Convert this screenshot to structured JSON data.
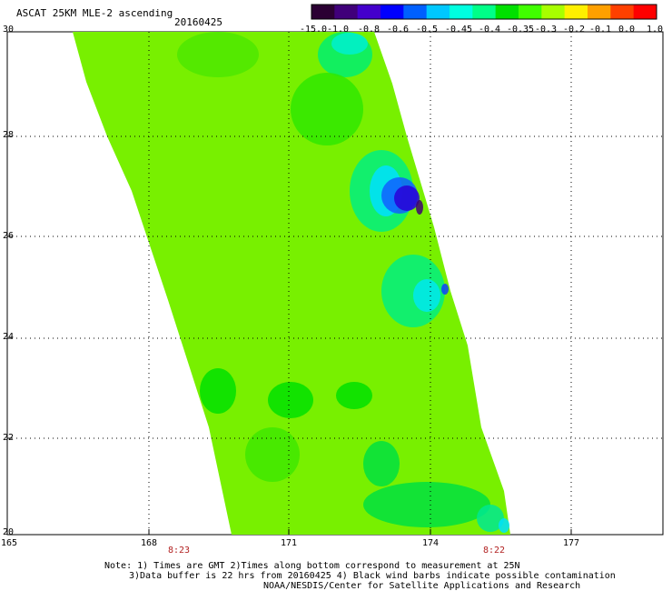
{
  "title": "ASCAT 25KM MLE-2 ascending",
  "date": "20160425",
  "colorbar": {
    "labels": [
      "-15.0",
      "-1.0",
      "-0.8",
      "-0.6",
      "-0.5",
      "-0.45",
      "-0.4",
      "-0.35",
      "-0.3",
      "-0.2",
      "-0.1",
      "0.0",
      "1.0"
    ],
    "colors": [
      "#2b0033",
      "#40007a",
      "#4400cc",
      "#0000ff",
      "#0060ff",
      "#00c8ff",
      "#00ffe0",
      "#00ff88",
      "#00e000",
      "#40ff00",
      "#a8ff00",
      "#fff000",
      "#ffa000",
      "#ff4000",
      "#ff0000"
    ]
  },
  "axes": {
    "y_ticks": [
      "30",
      "28",
      "26",
      "24",
      "22",
      "20"
    ],
    "x_ticks": [
      "165",
      "168",
      "171",
      "174",
      "177"
    ]
  },
  "times": {
    "left": "8:23",
    "right": "8:22"
  },
  "notes": {
    "line1": "Note: 1) Times are GMT 2)Times along bottom correspond to measurement at 25N",
    "line2": "3)Data buffer is 22 hrs from 20160425 4) Black wind barbs indicate possible contamination",
    "line3": "NOAA/NESDIS/Center for Satellite Applications and Research"
  }
}
